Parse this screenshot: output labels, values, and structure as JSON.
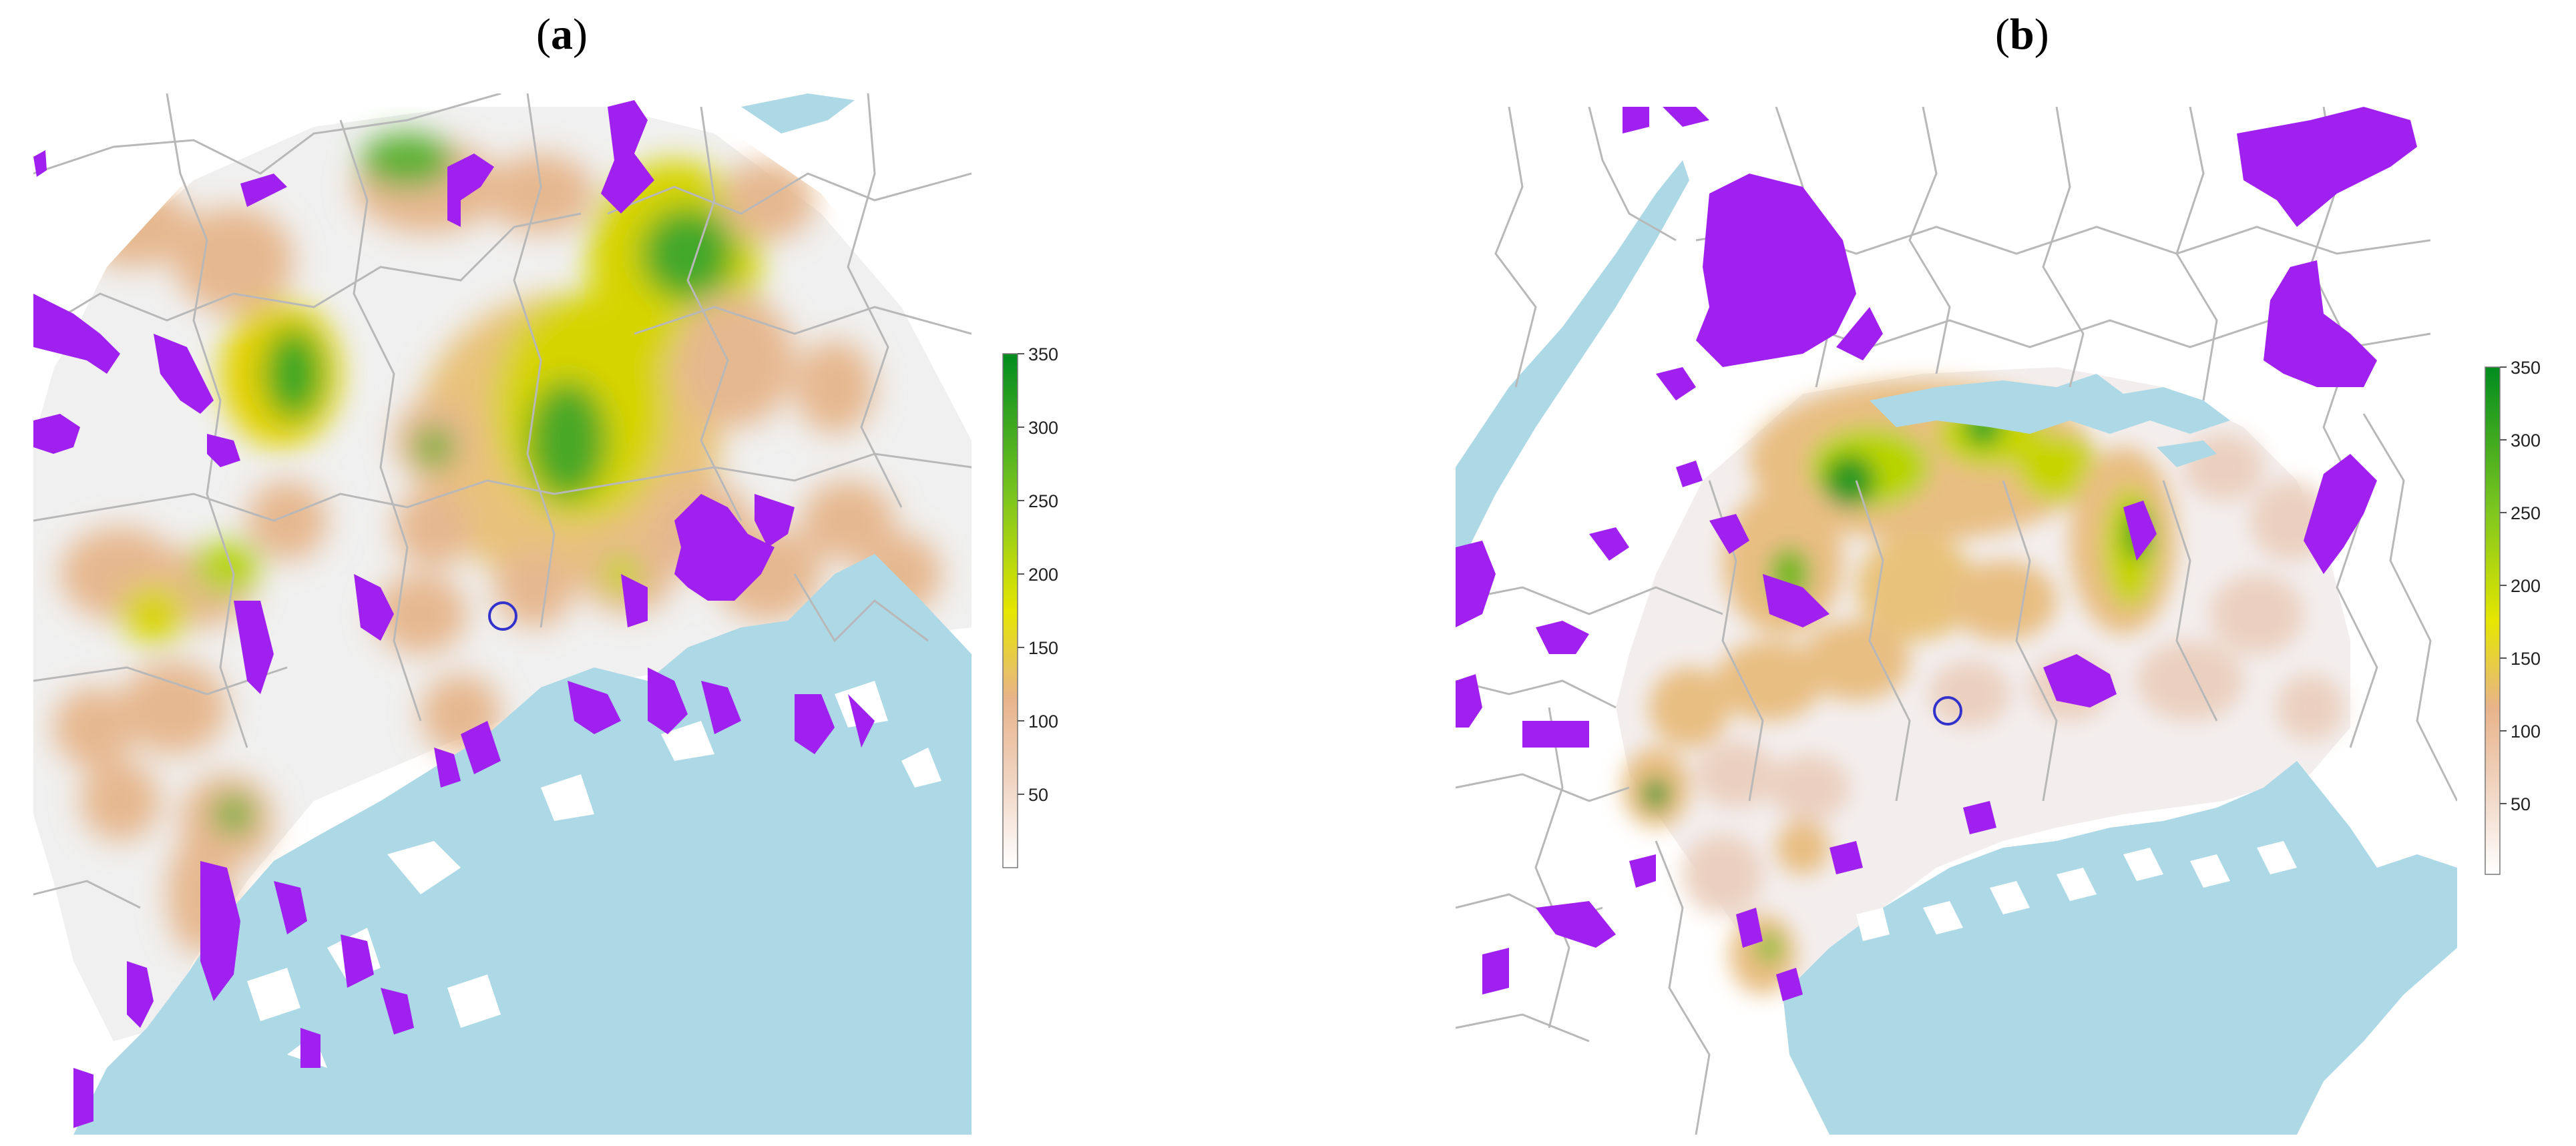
{
  "panels": [
    {
      "label_prefix": "(",
      "label_letter": "a",
      "label_suffix": ")",
      "legend": {
        "ticks": [
          "350",
          "300",
          "250",
          "200",
          "150",
          "100",
          "50"
        ],
        "min": 0,
        "max": 350
      },
      "marker": "station-circle"
    },
    {
      "label_prefix": "(",
      "label_letter": "b",
      "label_suffix": ")",
      "legend": {
        "ticks": [
          "350",
          "300",
          "250",
          "200",
          "150",
          "100",
          "50"
        ],
        "min": 0,
        "max": 350
      },
      "marker": "station-circle"
    }
  ],
  "colors": {
    "sea": "#add8e6",
    "protected_area": "#a020f0",
    "boundary": "#bdbdbd",
    "scale_low": "#f2f2f2",
    "scale_mid": "#e8b38a",
    "scale_high_mid": "#e6e600",
    "scale_high": "#008c1f",
    "marker": "#3333cc"
  }
}
